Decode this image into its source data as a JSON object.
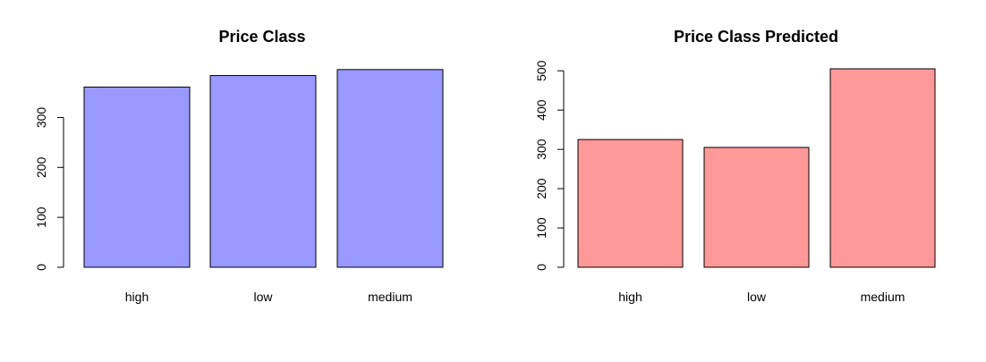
{
  "chart_data": [
    {
      "type": "bar",
      "title": "Price Class",
      "categories": [
        "high",
        "low",
        "medium"
      ],
      "values": [
        361,
        384,
        396
      ],
      "yticks": [
        0,
        100,
        200,
        300
      ],
      "ylim": [
        0,
        400
      ],
      "bar_color": "#9999ff",
      "grid": false
    },
    {
      "type": "bar",
      "title": "Price Class Predicted",
      "categories": [
        "high",
        "low",
        "medium"
      ],
      "values": [
        325,
        305,
        505
      ],
      "yticks": [
        0,
        100,
        200,
        300,
        400,
        500
      ],
      "ylim": [
        0,
        510
      ],
      "bar_color": "#ff9999",
      "grid": false
    }
  ]
}
